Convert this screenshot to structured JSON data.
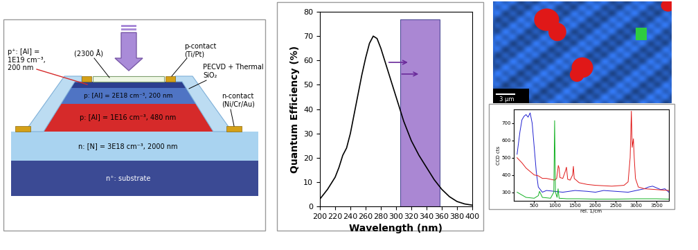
{
  "device_diagram": {
    "layers": {
      "p_plus": {
        "label": "p⁺: [Al] =\n1E19 cm⁻³,\n200 nm",
        "color": "#2c3f8f"
      },
      "p_mid": {
        "label": "p: [Al] = 2E18 cm⁻³, 200 nm",
        "color": "#4f74c4"
      },
      "p_low": {
        "label": "p: [Al] = 1E16 cm⁻³, 480 nm",
        "color": "#d62a2a"
      },
      "n": {
        "label": "n: [N] = 3E18 cm⁻³, 2000 nm",
        "color": "#a9d3f0"
      },
      "substrate": {
        "label": "n⁺: substrate",
        "color": "#3b4a94"
      }
    },
    "callouts": {
      "window": "(2300 Å)",
      "p_contact": "p-contact\n(Ti/Pt)",
      "passivation": "PECVD + Thermal\nSiO₂",
      "n_contact": "n-contact\n(Ni/Cr/Au)"
    }
  },
  "chart_data": [
    {
      "type": "line",
      "xlabel": "Wavelength (nm)",
      "ylabel": "Quantum Efficiency (%)",
      "xlim": [
        200,
        400
      ],
      "xticks": [
        200,
        220,
        240,
        260,
        280,
        300,
        320,
        340,
        360,
        380,
        400
      ],
      "ylim": [
        0,
        80
      ],
      "yticks": [
        0,
        10,
        20,
        30,
        40,
        50,
        60,
        70,
        80
      ],
      "band": {
        "x": [
          305,
          357
        ],
        "y": [
          0,
          77
        ],
        "color": "#9b72cc"
      },
      "series": [
        {
          "color": "#000000",
          "x": [
            200,
            210,
            220,
            225,
            230,
            235,
            240,
            245,
            250,
            255,
            260,
            265,
            270,
            275,
            280,
            285,
            290,
            300,
            310,
            320,
            330,
            340,
            350,
            360,
            370,
            380,
            390,
            400
          ],
          "values": [
            3,
            7,
            12,
            16,
            21,
            24,
            30,
            38,
            46,
            54,
            61,
            67,
            70,
            69,
            65,
            60,
            55,
            45,
            35,
            27,
            21,
            16,
            11,
            7,
            4,
            2,
            1,
            0.5
          ]
        }
      ]
    },
    {
      "type": "line",
      "xlabel": "rel. 1/cm",
      "ylabel": "CCD cts",
      "xlim": [
        0,
        3800
      ],
      "xticks": [
        500,
        1000,
        1500,
        2000,
        2500,
        3000,
        3500
      ],
      "ylim": [
        250,
        780
      ],
      "yticks": [
        300,
        400,
        500,
        600,
        700
      ],
      "series": [
        {
          "color": "#1f1fd0",
          "x": [
            80,
            150,
            200,
            250,
            300,
            350,
            400,
            450,
            500,
            550,
            600,
            700,
            800,
            1000,
            1200,
            1500,
            1800,
            2000,
            2200,
            2500,
            2800,
            3000,
            3200,
            3300,
            3400,
            3500,
            3600,
            3700,
            3800
          ],
          "values": [
            520,
            650,
            720,
            740,
            750,
            735,
            760,
            700,
            560,
            420,
            330,
            300,
            310,
            305,
            300,
            310,
            305,
            300,
            310,
            305,
            300,
            310,
            320,
            330,
            335,
            325,
            315,
            320,
            300
          ]
        },
        {
          "color": "#e01818",
          "x": [
            80,
            200,
            300,
            400,
            500,
            600,
            700,
            800,
            900,
            1000,
            1050,
            1090,
            1110,
            1130,
            1200,
            1260,
            1290,
            1320,
            1380,
            1440,
            1460,
            1480,
            1600,
            1800,
            2000,
            2400,
            2700,
            2800,
            2850,
            2880,
            2900,
            2930,
            2950,
            2980,
            3050,
            3200,
            3500,
            3800
          ],
          "values": [
            500,
            470,
            440,
            420,
            400,
            395,
            380,
            380,
            375,
            370,
            380,
            455,
            440,
            385,
            380,
            420,
            445,
            375,
            370,
            400,
            450,
            380,
            355,
            345,
            340,
            335,
            340,
            360,
            500,
            770,
            560,
            610,
            500,
            380,
            330,
            320,
            315,
            310
          ]
        },
        {
          "color": "#10b020",
          "x": [
            80,
            300,
            500,
            600,
            630,
            700,
            900,
            980,
            1000,
            1020,
            1060,
            1085,
            1110,
            1300,
            1600,
            2000,
            2500,
            3000,
            3500,
            3800
          ],
          "values": [
            300,
            270,
            265,
            280,
            305,
            270,
            265,
            300,
            715,
            300,
            270,
            320,
            265,
            262,
            262,
            260,
            260,
            262,
            262,
            260
          ]
        }
      ]
    }
  ],
  "raman_map": {
    "scale_bar": "3 µm",
    "colors": {
      "background": "#2f6fe0",
      "phase_1": "#e01818",
      "phase_2": "#2ecc40"
    }
  }
}
